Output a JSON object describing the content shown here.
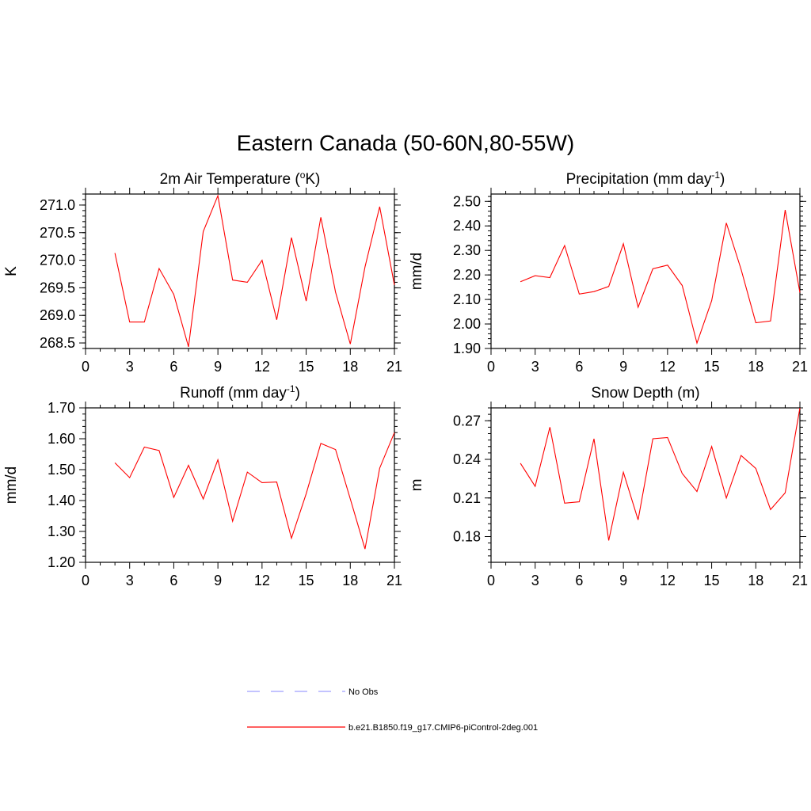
{
  "title": "Eastern Canada (50-60N,80-55W)",
  "legend": [
    {
      "label": "No Obs",
      "color": "#9f9fff",
      "dash": true
    },
    {
      "label": "b.e21.B1850.f19_g17.CMIP6-piControl-2deg.001",
      "color": "#ff0000",
      "dash": false
    }
  ],
  "chart_data": [
    {
      "type": "line",
      "title": "2m Air Temperature (oK)",
      "title_parts": {
        "pre": "2m Air Temperature (",
        "sup": "o",
        "post": "K)"
      },
      "xlabel": "",
      "ylabel": "K",
      "xlim": [
        0,
        21
      ],
      "ylim": [
        268.4,
        271.2
      ],
      "xticks": [
        0,
        3,
        6,
        9,
        12,
        15,
        18,
        21
      ],
      "yticks": [
        268.5,
        269.0,
        269.5,
        270.0,
        270.5,
        271.0
      ],
      "ytick_labels": [
        "268.5",
        "269.0",
        "269.5",
        "270.0",
        "270.5",
        "271.0"
      ],
      "yminor": 0.1,
      "series": [
        {
          "name": "b.e21.B1850.f19_g17.CMIP6-piControl-2deg.001",
          "color": "#ff0000",
          "x": [
            2,
            3,
            4,
            5,
            6,
            7,
            8,
            9,
            10,
            11,
            12,
            13,
            14,
            15,
            16,
            17,
            18,
            19,
            20,
            21
          ],
          "y": [
            270.13,
            268.88,
            268.88,
            269.85,
            269.38,
            268.43,
            270.52,
            271.17,
            269.64,
            269.6,
            270.0,
            268.92,
            270.41,
            269.26,
            270.78,
            269.42,
            268.48,
            269.88,
            270.97,
            269.55
          ]
        }
      ]
    },
    {
      "type": "line",
      "title": "Precipitation (mm day-1)",
      "title_parts": {
        "pre": "Precipitation (mm day",
        "sup": "-1",
        "post": ")"
      },
      "xlabel": "",
      "ylabel": "mm/d",
      "xlim": [
        0,
        21
      ],
      "ylim": [
        1.9,
        2.53
      ],
      "xticks": [
        0,
        3,
        6,
        9,
        12,
        15,
        18,
        21
      ],
      "yticks": [
        1.9,
        2.0,
        2.1,
        2.2,
        2.3,
        2.4,
        2.5
      ],
      "ytick_labels": [
        "1.90",
        "2.00",
        "2.10",
        "2.20",
        "2.30",
        "2.40",
        "2.50"
      ],
      "yminor": 0.02,
      "series": [
        {
          "name": "b.e21.B1850.f19_g17.CMIP6-piControl-2deg.001",
          "color": "#ff0000",
          "x": [
            2,
            3,
            4,
            5,
            6,
            7,
            8,
            9,
            10,
            11,
            12,
            13,
            14,
            15,
            16,
            17,
            18,
            19,
            20,
            21
          ],
          "y": [
            2.172,
            2.197,
            2.189,
            2.32,
            2.122,
            2.132,
            2.153,
            2.327,
            2.068,
            2.225,
            2.24,
            2.157,
            1.922,
            2.095,
            2.412,
            2.223,
            2.005,
            2.012,
            2.465,
            2.128
          ]
        }
      ]
    },
    {
      "type": "line",
      "title": "Runoff (mm day-1)",
      "title_parts": {
        "pre": "Runoff (mm day",
        "sup": "-1",
        "post": ")"
      },
      "xlabel": "",
      "ylabel": "mm/d",
      "xlim": [
        0,
        21
      ],
      "ylim": [
        1.2,
        1.7
      ],
      "xticks": [
        0,
        3,
        6,
        9,
        12,
        15,
        18,
        21
      ],
      "yticks": [
        1.2,
        1.3,
        1.4,
        1.5,
        1.6,
        1.7
      ],
      "ytick_labels": [
        "1.20",
        "1.30",
        "1.40",
        "1.50",
        "1.60",
        "1.70"
      ],
      "yminor": 0.02,
      "series": [
        {
          "name": "b.e21.B1850.f19_g17.CMIP6-piControl-2deg.001",
          "color": "#ff0000",
          "x": [
            2,
            3,
            4,
            5,
            6,
            7,
            8,
            9,
            10,
            11,
            12,
            13,
            14,
            15,
            16,
            17,
            18,
            19,
            20,
            21
          ],
          "y": [
            1.522,
            1.474,
            1.573,
            1.562,
            1.41,
            1.514,
            1.405,
            1.532,
            1.333,
            1.492,
            1.458,
            1.46,
            1.278,
            1.422,
            1.585,
            1.565,
            1.405,
            1.243,
            1.505,
            1.62
          ]
        }
      ]
    },
    {
      "type": "line",
      "title": "Snow Depth (m)",
      "title_parts": {
        "pre": "Snow Depth (m)",
        "sup": "",
        "post": ""
      },
      "xlabel": "",
      "ylabel": "m",
      "xlim": [
        0,
        21
      ],
      "ylim": [
        0.16,
        0.28
      ],
      "xticks": [
        0,
        3,
        6,
        9,
        12,
        15,
        18,
        21
      ],
      "yticks": [
        0.18,
        0.21,
        0.24,
        0.27
      ],
      "ytick_labels": [
        "0.18",
        "0.21",
        "0.24",
        "0.27"
      ],
      "yminor": 0.005,
      "series": [
        {
          "name": "b.e21.B1850.f19_g17.CMIP6-piControl-2deg.001",
          "color": "#ff0000",
          "x": [
            2,
            3,
            4,
            5,
            6,
            7,
            8,
            9,
            10,
            11,
            12,
            13,
            14,
            15,
            16,
            17,
            18,
            19,
            20,
            21
          ],
          "y": [
            0.237,
            0.219,
            0.265,
            0.206,
            0.207,
            0.256,
            0.177,
            0.23,
            0.193,
            0.256,
            0.257,
            0.229,
            0.215,
            0.25,
            0.21,
            0.243,
            0.233,
            0.201,
            0.214,
            0.28
          ]
        }
      ]
    }
  ]
}
